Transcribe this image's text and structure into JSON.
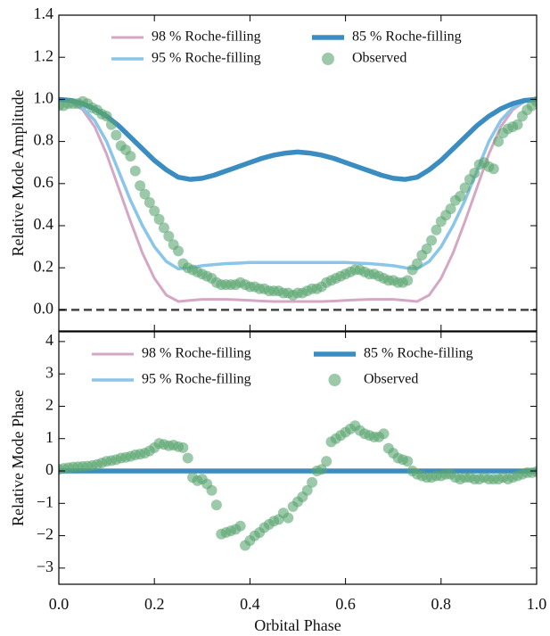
{
  "chart_data": [
    {
      "type": "line",
      "ylabel": "Relative Mode Amplitude",
      "xlim": [
        0,
        1
      ],
      "ylim": [
        -0.1,
        1.4
      ],
      "xticks": [
        0,
        0.2,
        0.4,
        0.6,
        0.8,
        1
      ],
      "yticks": [
        {
          "value": 0,
          "label": "0.0"
        },
        {
          "value": 0.2,
          "label": "0.2"
        },
        {
          "value": 0.4,
          "label": "0.4"
        },
        {
          "value": 0.6,
          "label": "0.6"
        },
        {
          "value": 0.8,
          "label": "0.8"
        },
        {
          "value": 1,
          "label": "1.0"
        },
        {
          "value": 1.2,
          "label": "1.2"
        },
        {
          "value": 1.4,
          "label": "1.4"
        }
      ],
      "reference_line": {
        "value": 0,
        "color": "#444444",
        "dashed": true
      },
      "legend_columns": 2,
      "series": [
        {
          "name": "98 % Roche-filling",
          "color": "#d4a8c4",
          "width": 3,
          "x": [
            0,
            0.025,
            0.05,
            0.075,
            0.1,
            0.125,
            0.15,
            0.175,
            0.2,
            0.225,
            0.25,
            0.275,
            0.3,
            0.325,
            0.35,
            0.375,
            0.4,
            0.425,
            0.45,
            0.475,
            0.5,
            0.525,
            0.55,
            0.575,
            0.6,
            0.625,
            0.65,
            0.675,
            0.7,
            0.725,
            0.75,
            0.775,
            0.8,
            0.825,
            0.85,
            0.875,
            0.9,
            0.925,
            0.95,
            0.975,
            1
          ],
          "values": [
            1.0,
            0.99,
            0.95,
            0.87,
            0.74,
            0.58,
            0.42,
            0.27,
            0.15,
            0.07,
            0.04,
            0.045,
            0.05,
            0.05,
            0.05,
            0.048,
            0.045,
            0.042,
            0.04,
            0.04,
            0.04,
            0.04,
            0.04,
            0.042,
            0.045,
            0.048,
            0.05,
            0.05,
            0.05,
            0.045,
            0.04,
            0.07,
            0.15,
            0.27,
            0.42,
            0.58,
            0.74,
            0.87,
            0.95,
            0.99,
            1.0
          ]
        },
        {
          "name": "95 % Roche-filling",
          "color": "#8ac6ea",
          "width": 3.5,
          "x": [
            0,
            0.025,
            0.05,
            0.075,
            0.1,
            0.125,
            0.15,
            0.175,
            0.2,
            0.225,
            0.25,
            0.275,
            0.3,
            0.325,
            0.35,
            0.375,
            0.4,
            0.425,
            0.45,
            0.475,
            0.5,
            0.525,
            0.55,
            0.575,
            0.6,
            0.625,
            0.65,
            0.675,
            0.7,
            0.725,
            0.75,
            0.775,
            0.8,
            0.825,
            0.85,
            0.875,
            0.9,
            0.925,
            0.95,
            0.975,
            1
          ],
          "values": [
            1.0,
            0.99,
            0.96,
            0.9,
            0.8,
            0.66,
            0.52,
            0.4,
            0.3,
            0.23,
            0.195,
            0.2,
            0.21,
            0.215,
            0.22,
            0.222,
            0.225,
            0.225,
            0.225,
            0.225,
            0.225,
            0.225,
            0.225,
            0.225,
            0.225,
            0.222,
            0.22,
            0.215,
            0.21,
            0.2,
            0.195,
            0.23,
            0.3,
            0.4,
            0.52,
            0.66,
            0.8,
            0.9,
            0.96,
            0.99,
            1.0
          ]
        },
        {
          "name": "85 % Roche-filling",
          "color": "#3b8dc1",
          "width": 5.5,
          "x": [
            0,
            0.025,
            0.05,
            0.075,
            0.1,
            0.125,
            0.15,
            0.175,
            0.2,
            0.225,
            0.25,
            0.275,
            0.3,
            0.325,
            0.35,
            0.375,
            0.4,
            0.425,
            0.45,
            0.475,
            0.5,
            0.525,
            0.55,
            0.575,
            0.6,
            0.625,
            0.65,
            0.675,
            0.7,
            0.725,
            0.75,
            0.775,
            0.8,
            0.825,
            0.85,
            0.875,
            0.9,
            0.925,
            0.95,
            0.975,
            1
          ],
          "values": [
            1.0,
            0.995,
            0.98,
            0.955,
            0.92,
            0.875,
            0.82,
            0.765,
            0.71,
            0.665,
            0.63,
            0.62,
            0.625,
            0.64,
            0.66,
            0.68,
            0.7,
            0.72,
            0.735,
            0.745,
            0.75,
            0.745,
            0.735,
            0.72,
            0.7,
            0.68,
            0.66,
            0.64,
            0.625,
            0.62,
            0.63,
            0.665,
            0.71,
            0.765,
            0.82,
            0.875,
            0.92,
            0.955,
            0.98,
            0.995,
            1.0
          ]
        },
        {
          "name": "Observed",
          "color": "#5aa56f",
          "marker": "circle",
          "x": [
            0,
            0.01,
            0.02,
            0.03,
            0.04,
            0.05,
            0.06,
            0.07,
            0.08,
            0.09,
            0.1,
            0.11,
            0.12,
            0.13,
            0.14,
            0.15,
            0.16,
            0.17,
            0.18,
            0.19,
            0.2,
            0.21,
            0.22,
            0.23,
            0.24,
            0.25,
            0.26,
            0.27,
            0.28,
            0.29,
            0.3,
            0.31,
            0.32,
            0.33,
            0.34,
            0.35,
            0.36,
            0.37,
            0.38,
            0.39,
            0.4,
            0.41,
            0.42,
            0.43,
            0.44,
            0.45,
            0.46,
            0.47,
            0.48,
            0.49,
            0.5,
            0.51,
            0.52,
            0.53,
            0.54,
            0.55,
            0.56,
            0.57,
            0.58,
            0.59,
            0.6,
            0.61,
            0.62,
            0.63,
            0.64,
            0.65,
            0.66,
            0.67,
            0.68,
            0.69,
            0.7,
            0.71,
            0.72,
            0.73,
            0.74,
            0.75,
            0.76,
            0.77,
            0.78,
            0.79,
            0.8,
            0.81,
            0.82,
            0.83,
            0.84,
            0.85,
            0.86,
            0.87,
            0.88,
            0.89,
            0.9,
            0.91,
            0.92,
            0.93,
            0.94,
            0.95,
            0.96,
            0.97,
            0.98,
            0.99,
            1
          ],
          "values": [
            0.97,
            0.97,
            0.98,
            0.98,
            0.98,
            0.99,
            0.98,
            0.96,
            0.95,
            0.93,
            0.92,
            0.88,
            0.83,
            0.78,
            0.76,
            0.73,
            0.66,
            0.59,
            0.55,
            0.51,
            0.47,
            0.43,
            0.39,
            0.35,
            0.31,
            0.28,
            0.22,
            0.2,
            0.19,
            0.18,
            0.17,
            0.16,
            0.15,
            0.13,
            0.12,
            0.12,
            0.12,
            0.12,
            0.13,
            0.12,
            0.11,
            0.11,
            0.1,
            0.1,
            0.09,
            0.09,
            0.09,
            0.08,
            0.08,
            0.07,
            0.08,
            0.08,
            0.09,
            0.1,
            0.1,
            0.11,
            0.13,
            0.14,
            0.15,
            0.16,
            0.17,
            0.18,
            0.19,
            0.19,
            0.18,
            0.17,
            0.17,
            0.16,
            0.15,
            0.14,
            0.14,
            0.13,
            0.13,
            0.14,
            0.19,
            0.22,
            0.26,
            0.29,
            0.33,
            0.38,
            0.42,
            0.45,
            0.48,
            0.52,
            0.54,
            0.58,
            0.62,
            0.65,
            0.69,
            0.7,
            0.68,
            0.67,
            0.8,
            0.84,
            0.86,
            0.87,
            0.88,
            0.92,
            0.95,
            0.97,
            0.99
          ]
        }
      ]
    },
    {
      "type": "line",
      "ylabel": "Relative Mode Phase",
      "xlabel": "Orbital Phase",
      "xlim": [
        0,
        1
      ],
      "ylim": [
        -3.5,
        4.3
      ],
      "xticks": [
        {
          "value": 0,
          "label": "0.0"
        },
        {
          "value": 0.2,
          "label": "0.2"
        },
        {
          "value": 0.4,
          "label": "0.4"
        },
        {
          "value": 0.6,
          "label": "0.6"
        },
        {
          "value": 0.8,
          "label": "0.8"
        },
        {
          "value": 1,
          "label": "1.0"
        }
      ],
      "yticks": [
        {
          "value": -3,
          "label": "−3"
        },
        {
          "value": -2,
          "label": "−2"
        },
        {
          "value": -1,
          "label": "−1"
        },
        0,
        1,
        2,
        3,
        4
      ],
      "legend_columns": 2,
      "series": [
        {
          "name": "98 % Roche-filling",
          "color": "#d4a8c4",
          "width": 3,
          "x": [
            0,
            0.25,
            0.5,
            0.75,
            1
          ],
          "values": [
            0,
            0,
            0,
            0,
            0
          ]
        },
        {
          "name": "95 % Roche-filling",
          "color": "#8ac6ea",
          "width": 3.5,
          "x": [
            0,
            0.25,
            0.5,
            0.75,
            1
          ],
          "values": [
            0,
            0,
            0,
            0,
            0
          ]
        },
        {
          "name": "85 % Roche-filling",
          "color": "#3b8dc1",
          "width": 5.5,
          "x": [
            0,
            0.25,
            0.5,
            0.75,
            1
          ],
          "values": [
            0,
            0,
            0,
            0,
            0
          ]
        },
        {
          "name": "Observed",
          "color": "#5aa56f",
          "marker": "circle",
          "x": [
            0,
            0.01,
            0.02,
            0.03,
            0.04,
            0.05,
            0.06,
            0.07,
            0.08,
            0.09,
            0.1,
            0.11,
            0.12,
            0.13,
            0.14,
            0.15,
            0.16,
            0.17,
            0.18,
            0.19,
            0.2,
            0.21,
            0.22,
            0.23,
            0.24,
            0.25,
            0.26,
            0.27,
            0.28,
            0.29,
            0.3,
            0.31,
            0.32,
            0.33,
            0.34,
            0.35,
            0.36,
            0.37,
            0.38,
            0.39,
            0.4,
            0.41,
            0.42,
            0.43,
            0.44,
            0.45,
            0.46,
            0.47,
            0.48,
            0.49,
            0.5,
            0.51,
            0.52,
            0.53,
            0.54,
            0.55,
            0.56,
            0.57,
            0.58,
            0.59,
            0.6,
            0.61,
            0.62,
            0.63,
            0.64,
            0.65,
            0.66,
            0.67,
            0.68,
            0.69,
            0.7,
            0.71,
            0.72,
            0.73,
            0.74,
            0.75,
            0.76,
            0.77,
            0.78,
            0.79,
            0.8,
            0.81,
            0.82,
            0.83,
            0.84,
            0.85,
            0.86,
            0.87,
            0.88,
            0.89,
            0.9,
            0.91,
            0.92,
            0.93,
            0.94,
            0.95,
            0.96,
            0.97,
            0.98,
            0.99,
            1
          ],
          "values": [
            0.05,
            0.08,
            0.1,
            0.12,
            0.13,
            0.14,
            0.15,
            0.17,
            0.2,
            0.25,
            0.3,
            0.32,
            0.35,
            0.4,
            0.42,
            0.45,
            0.5,
            0.52,
            0.55,
            0.62,
            0.72,
            0.85,
            0.82,
            0.78,
            0.8,
            0.75,
            0.72,
            0.4,
            -0.2,
            -0.3,
            -0.25,
            -0.4,
            -0.6,
            -1.05,
            -1.95,
            -1.9,
            -1.85,
            -1.8,
            -1.7,
            -2.3,
            -2.15,
            -2.0,
            -1.9,
            -1.75,
            -1.65,
            -1.55,
            -1.5,
            -1.3,
            -1.45,
            -1.1,
            -0.95,
            -0.8,
            -0.6,
            -0.35,
            0.0,
            0.05,
            0.3,
            0.9,
            1.0,
            1.1,
            1.2,
            1.3,
            1.4,
            1.25,
            1.15,
            1.1,
            1.05,
            1.05,
            1.15,
            0.7,
            0.55,
            0.4,
            0.35,
            0.3,
            0.0,
            -0.1,
            -0.15,
            -0.2,
            -0.2,
            -0.15,
            -0.15,
            -0.1,
            -0.1,
            -0.2,
            -0.25,
            -0.2,
            -0.2,
            -0.25,
            -0.25,
            -0.2,
            -0.25,
            -0.25,
            -0.25,
            -0.2,
            -0.25,
            -0.2,
            -0.15,
            -0.1,
            -0.05,
            -0.05,
            -0.02
          ]
        }
      ]
    }
  ]
}
